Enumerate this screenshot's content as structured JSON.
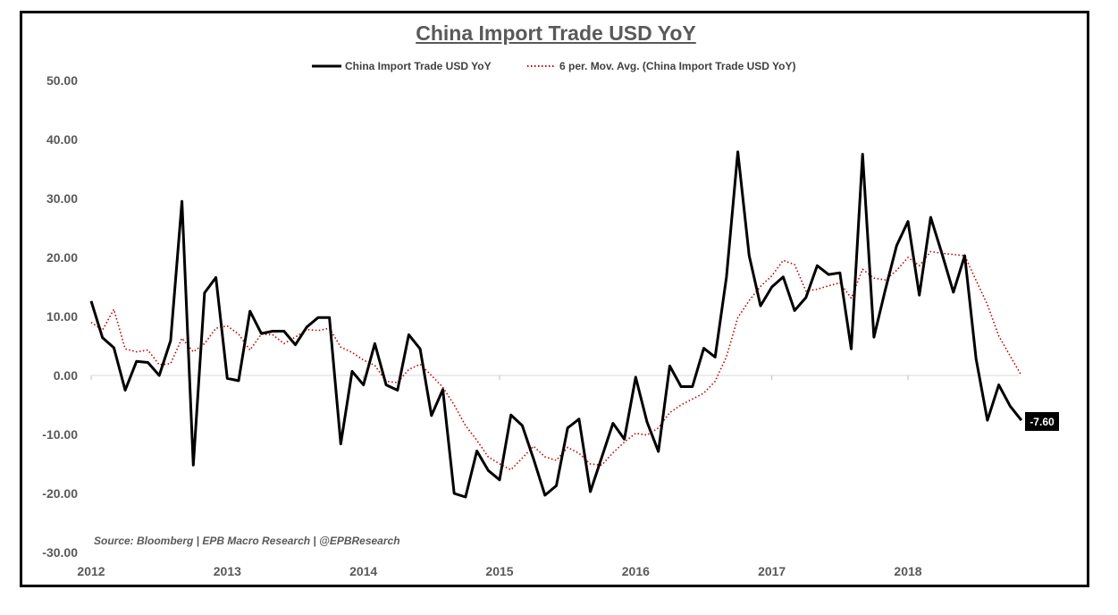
{
  "chart_data": {
    "type": "line",
    "title": "China Import Trade USD YoY",
    "source": "Source: Bloomberg | EPB Macro Research | @EPBResearch",
    "y_ticks": [
      "50.00",
      "40.00",
      "30.00",
      "20.00",
      "10.00",
      "0.00",
      "-10.00",
      "-20.00",
      "-30.00"
    ],
    "x_ticks": [
      "2012",
      "2013",
      "2014",
      "2015",
      "2016",
      "2017",
      "2018"
    ],
    "ylim": [
      -30,
      50
    ],
    "x_start_year": 2012,
    "x_interval_months": 1,
    "last_value_label": "-7.60",
    "legend_position": "top-center",
    "grid": false,
    "series": [
      {
        "name": "China Import Trade USD YoY",
        "color": "#000000",
        "style": "solid",
        "values": [
          12.6,
          6.4,
          4.7,
          -2.5,
          2.4,
          2.2,
          0.0,
          5.9,
          29.5,
          -15.2,
          14.0,
          16.6,
          -0.5,
          -0.9,
          10.9,
          7.1,
          7.5,
          7.5,
          5.2,
          8.2,
          9.8,
          9.8,
          -11.6,
          0.7,
          -1.6,
          5.4,
          -1.6,
          -2.5,
          6.9,
          4.5,
          -6.8,
          -2.4,
          -20.0,
          -20.6,
          -12.8,
          -16.1,
          -17.7,
          -6.7,
          -8.5,
          -14.2,
          -20.3,
          -18.7,
          -8.9,
          -7.4,
          -19.7,
          -13.9,
          -8.1,
          -10.8,
          -0.3,
          -7.9,
          -12.9,
          1.6,
          -1.9,
          -1.9,
          4.6,
          3.1,
          16.7,
          37.9,
          20.3,
          11.8,
          15.0,
          16.7,
          11.0,
          13.2,
          18.6,
          17.1,
          17.4,
          4.5,
          37.5,
          6.5,
          14.5,
          22.0,
          26.1,
          13.6,
          26.8,
          20.6,
          14.1,
          20.3,
          2.8,
          -7.6,
          -1.6,
          -5.2,
          -7.6
        ]
      },
      {
        "name": "6 per. Mov. Avg. (China Import Trade USD YoY)",
        "color": "#c00000",
        "style": "dotted",
        "values": [
          9.0,
          7.7,
          11.2,
          4.5,
          4.0,
          4.3,
          1.8,
          2.0,
          6.3,
          4.0,
          5.4,
          8.0,
          8.4,
          7.0,
          4.3,
          7.0,
          6.9,
          5.4,
          6.5,
          7.8,
          7.6,
          8.0,
          4.8,
          3.9,
          2.6,
          1.7,
          -1.0,
          -1.2,
          1.0,
          1.9,
          0.0,
          -2.0,
          -5.0,
          -8.5,
          -11.0,
          -13.8,
          -15.0,
          -16.0,
          -14.0,
          -12.0,
          -13.8,
          -14.4,
          -12.2,
          -13.2,
          -15.0,
          -15.2,
          -13.1,
          -11.3,
          -9.8,
          -10.1,
          -8.9,
          -6.3,
          -5.0,
          -4.0,
          -3.0,
          -1.0,
          3.2,
          9.8,
          12.7,
          15.1,
          16.9,
          19.5,
          18.8,
          14.3,
          14.6,
          15.2,
          15.7,
          13.1,
          18.0,
          16.5,
          16.2,
          17.8,
          20.0,
          18.6,
          21.0,
          20.7,
          20.5,
          20.3,
          16.1,
          12.0,
          6.7,
          3.3,
          0.0
        ]
      }
    ]
  }
}
